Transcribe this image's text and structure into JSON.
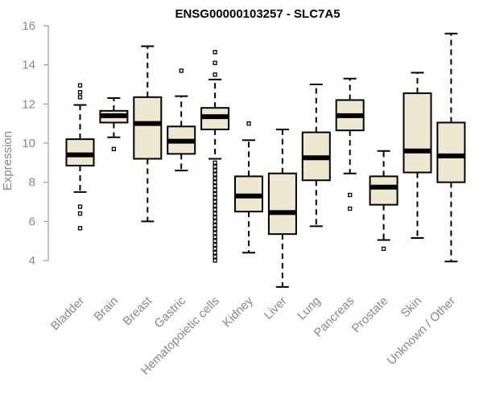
{
  "chart_data": {
    "type": "boxplot",
    "title": "ENSG00000103257 - SLC7A5",
    "ylabel": "Expression",
    "xlabel": "",
    "ylim": [
      2.5,
      16.3
    ],
    "yticks": [
      4,
      6,
      8,
      10,
      12,
      14,
      16
    ],
    "box_fill": "#efe8d0",
    "categories": [
      "Bladder",
      "Brain",
      "Breast",
      "Gastric",
      "Hematopoietic cells",
      "Kidney",
      "Liver",
      "Lung",
      "Pancreas",
      "Prostate",
      "Skin",
      "Unknown / Other"
    ],
    "boxes": [
      {
        "name": "Bladder",
        "whislo": 7.5,
        "q1": 8.85,
        "med": 9.4,
        "q3": 10.2,
        "whishi": 11.95,
        "fliers": [
          5.65,
          6.4,
          6.75,
          12.35,
          12.6,
          12.95
        ]
      },
      {
        "name": "Brain",
        "whislo": 10.3,
        "q1": 11.05,
        "med": 11.4,
        "q3": 11.65,
        "whishi": 12.3,
        "fliers": [
          9.7
        ]
      },
      {
        "name": "Breast",
        "whislo": 6.0,
        "q1": 9.2,
        "med": 11.0,
        "q3": 12.35,
        "whishi": 14.95,
        "fliers": []
      },
      {
        "name": "Gastric",
        "whislo": 8.6,
        "q1": 9.45,
        "med": 10.1,
        "q3": 10.85,
        "whishi": 12.4,
        "fliers": [
          13.7
        ]
      },
      {
        "name": "Hematopoietic cells",
        "whislo": 9.2,
        "q1": 10.7,
        "med": 11.35,
        "q3": 11.8,
        "whishi": 13.25,
        "fliers": [
          4.0,
          4.2,
          4.4,
          4.6,
          4.8,
          5.0,
          5.2,
          5.4,
          5.6,
          5.8,
          6.0,
          6.2,
          6.4,
          6.6,
          6.8,
          7.0,
          7.2,
          7.4,
          7.6,
          7.8,
          8.0,
          8.2,
          8.4,
          8.6,
          8.8,
          9.0,
          13.5,
          14.1,
          14.65
        ]
      },
      {
        "name": "Kidney",
        "whislo": 4.4,
        "q1": 6.5,
        "med": 7.3,
        "q3": 8.3,
        "whishi": 10.15,
        "fliers": [
          11.0
        ]
      },
      {
        "name": "Liver",
        "whislo": 2.65,
        "q1": 5.35,
        "med": 6.45,
        "q3": 8.45,
        "whishi": 10.7,
        "fliers": []
      },
      {
        "name": "Lung",
        "whislo": 5.75,
        "q1": 8.1,
        "med": 9.25,
        "q3": 10.55,
        "whishi": 13.0,
        "fliers": []
      },
      {
        "name": "Pancreas",
        "whislo": 8.45,
        "q1": 10.65,
        "med": 11.4,
        "q3": 12.2,
        "whishi": 13.3,
        "fliers": [
          6.65,
          7.35
        ]
      },
      {
        "name": "Prostate",
        "whislo": 5.05,
        "q1": 6.85,
        "med": 7.75,
        "q3": 8.3,
        "whishi": 9.6,
        "fliers": [
          4.6
        ]
      },
      {
        "name": "Skin",
        "whislo": 5.15,
        "q1": 8.5,
        "med": 9.6,
        "q3": 12.55,
        "whishi": 13.6,
        "fliers": []
      },
      {
        "name": "Unknown / Other",
        "whislo": 3.95,
        "q1": 8.0,
        "med": 9.35,
        "q3": 11.05,
        "whishi": 15.6,
        "fliers": []
      }
    ]
  }
}
